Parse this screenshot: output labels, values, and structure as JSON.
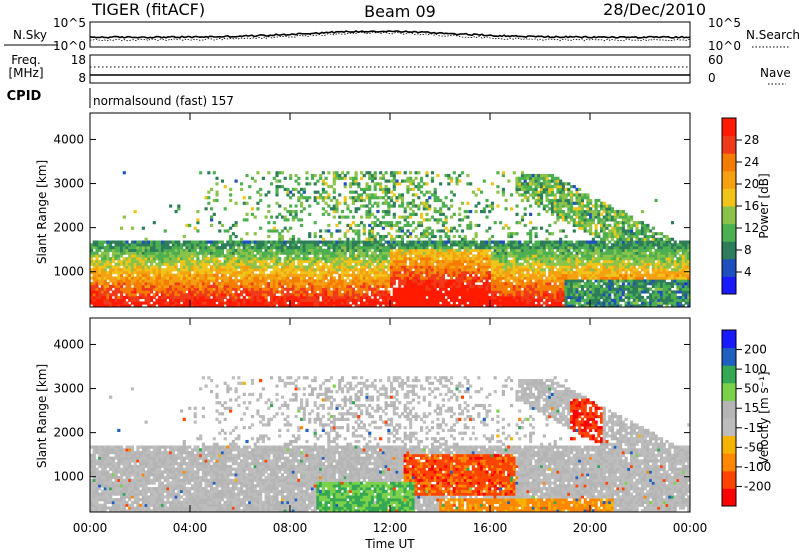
{
  "header": {
    "radar": "TIGER (fitACF)",
    "beam": "Beam 09",
    "date": "28/Dec/2010"
  },
  "noise_panel": {
    "left_label": "N.Sky",
    "right_label": "N.Search",
    "left_ticks": [
      "10^5",
      "10^0"
    ],
    "right_ticks": [
      "10^5",
      "10^0"
    ]
  },
  "freq_panel": {
    "left_label_1": "Freq.",
    "left_label_2": "[MHz]",
    "right_label": "Nave",
    "left_ticks": [
      "18",
      "8"
    ],
    "right_ticks": [
      "60",
      "0"
    ]
  },
  "cpid_panel": {
    "left_label": "CPID",
    "program_text": "normalsound (fast) 157"
  },
  "colors": {
    "power_scale": [
      "#1a1aff",
      "#1f4fbf",
      "#2e7d5a",
      "#4caf50",
      "#8bc34a",
      "#f0c419",
      "#f5a011",
      "#f57c00",
      "#ef3b1a",
      "#ff1a00"
    ],
    "velocity_scale": [
      "#ff0000",
      "#ff4400",
      "#ff8800",
      "#f5b300",
      "#bdbdbd",
      "#b5b5b5",
      "#7cd14a",
      "#34a853",
      "#1f5fbf",
      "#1a1aff"
    ]
  },
  "chart_data": [
    {
      "type": "heatmap",
      "name": "power",
      "ylabel": "Slant Range [km]",
      "yticks": [
        "1000",
        "2000",
        "3000",
        "4000"
      ],
      "ylim": [
        200,
        4600
      ],
      "xlim_hours": [
        0,
        24
      ],
      "colorbar_label": "Power [dB]",
      "colorbar_ticks": [
        "4",
        "8",
        "12",
        "16",
        "20",
        "24",
        "28"
      ],
      "colorbar_range": [
        0,
        32
      ]
    },
    {
      "type": "heatmap",
      "name": "velocity",
      "xlabel": "Time UT",
      "ylabel": "Slant Range [km]",
      "xticks": [
        "00:00",
        "04:00",
        "08:00",
        "12:00",
        "16:00",
        "20:00",
        "00:00"
      ],
      "yticks": [
        "1000",
        "2000",
        "3000",
        "4000"
      ],
      "ylim": [
        200,
        4600
      ],
      "xlim_hours": [
        0,
        24
      ],
      "colorbar_label": "Velocity [m s⁻¹]",
      "colorbar_ticks": [
        "200",
        "100",
        "50",
        "15",
        "-15",
        "-50",
        "-100",
        "-200"
      ]
    }
  ]
}
